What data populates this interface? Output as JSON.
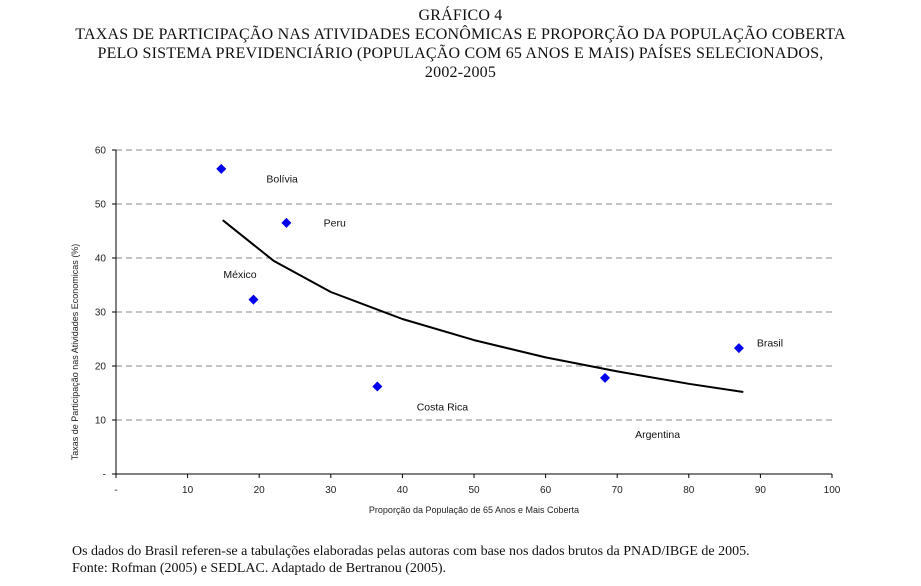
{
  "header": {
    "label": "GRÁFICO 4",
    "title_line1": "TAXAS DE PARTICIPAÇÃO NAS ATIVIDADES ECONÔMICAS E PROPORÇÃO DA POPULAÇÃO COBERTA",
    "title_line2": "PELO SISTEMA PREVIDENCIÁRIO (POPULAÇÃO COM 65 ANOS E MAIS) PAÍSES SELECIONADOS,",
    "title_line3": "2002-2005"
  },
  "chart_data": {
    "type": "scatter",
    "xlabel": "Proporção da População de 65 Anos e Mais  Coberta",
    "ylabel": "Taxas de Participação nas Atividades Economicas (%)",
    "xlim": [
      0,
      100
    ],
    "ylim": [
      0,
      60
    ],
    "x_ticks": [
      "-",
      "10",
      "20",
      "30",
      "40",
      "50",
      "60",
      "70",
      "80",
      "90",
      "100"
    ],
    "y_ticks": [
      "-",
      "10",
      "20",
      "30",
      "40",
      "50",
      "60"
    ],
    "grid": "horizontal dashed",
    "marker_color": "#0000ee",
    "trend_color": "#000000",
    "points": [
      {
        "label": "Bolívia",
        "x": 14.7,
        "y": 56.5,
        "label_x": 21,
        "label_y": 54
      },
      {
        "label": "Peru",
        "x": 23.8,
        "y": 46.5,
        "label_x": 29,
        "label_y": 45.8
      },
      {
        "label": "México",
        "x": 19.2,
        "y": 32.3,
        "label_x": 15,
        "label_y": 36.3
      },
      {
        "label": "Costa Rica",
        "x": 36.5,
        "y": 16.2,
        "label_x": 42,
        "label_y": 11.8
      },
      {
        "label": "Argentina",
        "x": 68.3,
        "y": 17.8,
        "label_x": 72.5,
        "label_y": 6.7
      },
      {
        "label": "Brasil",
        "x": 87.0,
        "y": 23.3,
        "label_x": 89.5,
        "label_y": 23.6
      }
    ],
    "trendline": {
      "type": "logarithmic",
      "x": [
        15,
        22,
        30,
        40,
        50,
        60,
        70,
        80,
        87.5
      ],
      "y": [
        46.9,
        39.5,
        33.7,
        28.7,
        24.8,
        21.6,
        19.0,
        16.7,
        15.2
      ]
    }
  },
  "footer": {
    "note": "Os dados do Brasil referen-se a tabulações elaboradas pelas autoras com base nos dados brutos da PNAD/IBGE de 2005.",
    "source": "Fonte: Rofman (2005) e SEDLAC. Adaptado  de Bertranou (2005)."
  }
}
